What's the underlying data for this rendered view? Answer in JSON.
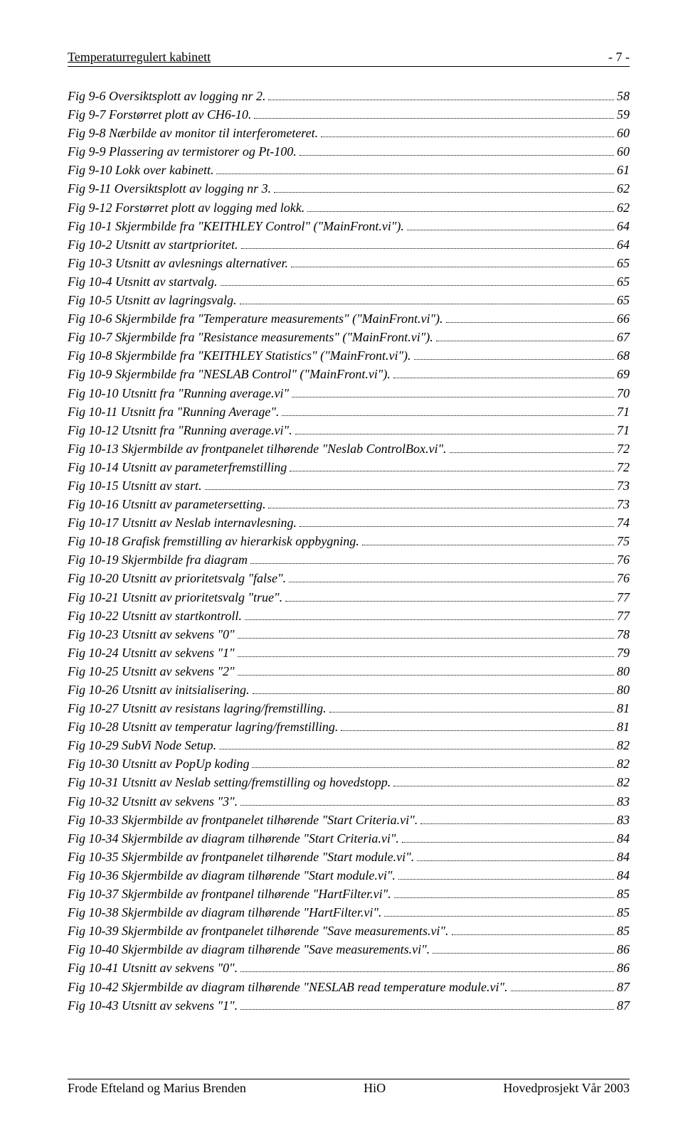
{
  "header": {
    "left": "Temperaturregulert kabinett",
    "right": "- 7 -"
  },
  "toc": [
    {
      "label": "Fig 9-6 Oversiktsplott av logging nr 2.",
      "page": "58"
    },
    {
      "label": "Fig 9-7 Forstørret plott av CH6-10.",
      "page": "59"
    },
    {
      "label": "Fig 9-8 Nærbilde av monitor til  interferometeret.",
      "page": "60"
    },
    {
      "label": "Fig 9-9 Plassering av termistorer og Pt-100.",
      "page": "60"
    },
    {
      "label": "Fig 9-10 Lokk over kabinett.",
      "page": "61"
    },
    {
      "label": "Fig 9-11 Oversiktsplott av logging nr 3.",
      "page": "62"
    },
    {
      "label": "Fig 9-12 Forstørret plott av logging med lokk.",
      "page": "62"
    },
    {
      "label": "Fig 10-1 Skjermbilde fra \"KEITHLEY Control\" (\"MainFront.vi\").",
      "page": "64"
    },
    {
      "label": "Fig 10-2 Utsnitt av startprioritet.",
      "page": "64"
    },
    {
      "label": "Fig 10-3 Utsnitt av avlesnings alternativer.",
      "page": "65"
    },
    {
      "label": "Fig 10-4 Utsnitt av startvalg.",
      "page": "65"
    },
    {
      "label": "Fig 10-5 Utsnitt av lagringsvalg.",
      "page": "65"
    },
    {
      "label": "Fig 10-6 Skjermbilde fra \"Temperature measurements\" (\"MainFront.vi\").",
      "page": "66"
    },
    {
      "label": "Fig 10-7 Skjermbilde fra \"Resistance measurements\" (\"MainFront.vi\").",
      "page": "67"
    },
    {
      "label": "Fig 10-8 Skjermbilde fra \"KEITHLEY Statistics\" (\"MainFront.vi\").",
      "page": "68"
    },
    {
      "label": "Fig 10-9 Skjermbilde fra \"NESLAB Control\" (\"MainFront.vi\").",
      "page": "69"
    },
    {
      "label": "Fig 10-10 Utsnitt fra \"Running average.vi\"",
      "page": "70"
    },
    {
      "label": "Fig 10-11 Utsnitt fra \"Running Average\".",
      "page": "71"
    },
    {
      "label": "Fig 10-12 Utsnitt fra \"Running average.vi\".",
      "page": "71"
    },
    {
      "label": "Fig 10-13 Skjermbilde av frontpanelet tilhørende \"Neslab ControlBox.vi\".",
      "page": "72"
    },
    {
      "label": "Fig 10-14 Utsnitt av parameterfremstilling",
      "page": "72"
    },
    {
      "label": "Fig 10-15 Utsnitt av start.",
      "page": "73"
    },
    {
      "label": "Fig 10-16 Utsnitt av parametersetting.",
      "page": "73"
    },
    {
      "label": "Fig 10-17 Utsnitt av Neslab internavlesning.",
      "page": "74"
    },
    {
      "label": "Fig 10-18 Grafisk fremstilling av hierarkisk oppbygning.",
      "page": "75"
    },
    {
      "label": "Fig 10-19 Skjermbilde fra diagram",
      "page": "76"
    },
    {
      "label": "Fig 10-20 Utsnitt av prioritetsvalg \"false\".",
      "page": "76"
    },
    {
      "label": "Fig 10-21 Utsnitt av prioritetsvalg \"true\".",
      "page": "77"
    },
    {
      "label": "Fig 10-22 Utsnitt av startkontroll.",
      "page": "77"
    },
    {
      "label": "Fig 10-23 Utsnitt av sekvens \"0\"",
      "page": "78"
    },
    {
      "label": "Fig 10-24 Utsnitt av sekvens \"1\"",
      "page": "79"
    },
    {
      "label": "Fig 10-25 Utsnitt av sekvens \"2\"",
      "page": "80"
    },
    {
      "label": "Fig 10-26 Utsnitt av initsialisering.",
      "page": "80"
    },
    {
      "label": "Fig 10-27 Utsnitt av resistans lagring/fremstilling.",
      "page": "81"
    },
    {
      "label": "Fig 10-28 Utsnitt av temperatur lagring/fremstilling.",
      "page": "81"
    },
    {
      "label": "Fig 10-29 SubVi Node Setup.",
      "page": "82"
    },
    {
      "label": "Fig 10-30 Utsnitt av PopUp koding",
      "page": "82"
    },
    {
      "label": "Fig 10-31 Utsnitt av Neslab setting/fremstilling og hovedstopp.",
      "page": "82"
    },
    {
      "label": "Fig 10-32 Utsnitt av sekvens \"3\".",
      "page": "83"
    },
    {
      "label": "Fig 10-33 Skjermbilde av frontpanelet tilhørende \"Start Criteria.vi\".",
      "page": "83"
    },
    {
      "label": "Fig 10-34 Skjermbilde av diagram tilhørende \"Start Criteria.vi\".",
      "page": "84"
    },
    {
      "label": "Fig 10-35 Skjermbilde av frontpanelet tilhørende \"Start module.vi\".",
      "page": "84"
    },
    {
      "label": "Fig 10-36 Skjermbilde av diagram tilhørende \"Start module.vi\".",
      "page": "84"
    },
    {
      "label": "Fig 10-37 Skjermbilde av frontpanel tilhørende \"HartFilter.vi\".",
      "page": "85"
    },
    {
      "label": "Fig 10-38 Skjermbilde av diagram tilhørende \"HartFilter.vi\".",
      "page": "85"
    },
    {
      "label": "Fig 10-39 Skjermbilde av frontpanelet tilhørende \"Save measurements.vi\".",
      "page": "85"
    },
    {
      "label": "Fig 10-40 Skjermbilde av diagram tilhørende \"Save measurements.vi\".",
      "page": "86"
    },
    {
      "label": "Fig 10-41 Utsnitt av sekvens \"0\".",
      "page": "86"
    },
    {
      "label": "Fig 10-42 Skjermbilde av diagram tilhørende \"NESLAB read temperature module.vi\".",
      "page": "87"
    },
    {
      "label": "Fig 10-43 Utsnitt av sekvens \"1\".",
      "page": "87"
    }
  ],
  "footer": {
    "left": "Frode Efteland og Marius Brenden",
    "center": "HiO",
    "right": "Hovedprosjekt Vår 2003"
  }
}
